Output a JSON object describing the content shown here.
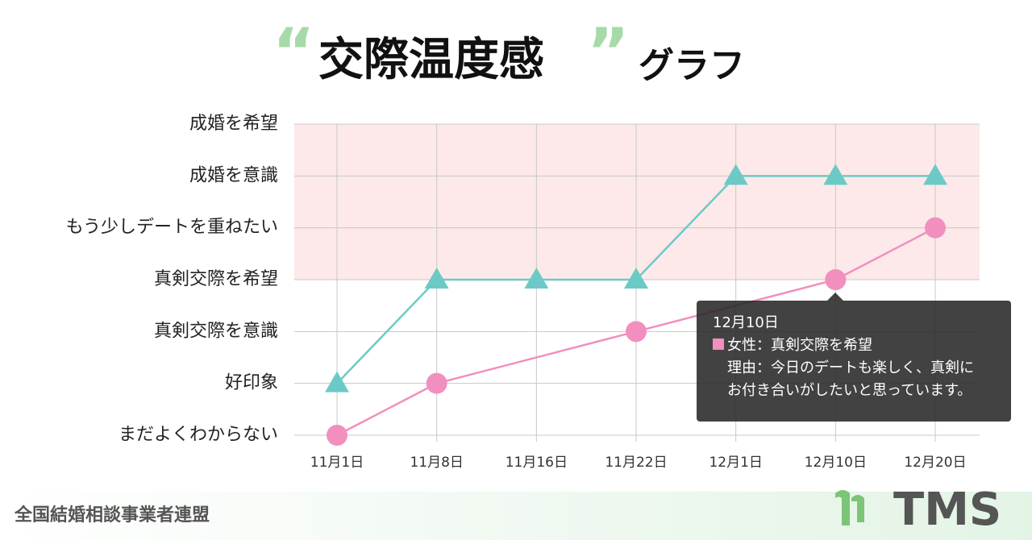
{
  "chart_data": {
    "type": "line",
    "title_quotes": [
      "“",
      "”"
    ],
    "title": "交際温度感",
    "title_suffix": "グラフ",
    "categories": [
      "11月1日",
      "11月8日",
      "11月16日",
      "11月22日",
      "12月1日",
      "12月10日",
      "12月20日"
    ],
    "series": [
      {
        "color": "#6ccac6",
        "marker": "triangle",
        "values": [
          1,
          3,
          3,
          3,
          5,
          5,
          5
        ]
      },
      {
        "color": "#f28fbf",
        "marker": "circle",
        "values": [
          0,
          1,
          null,
          2,
          null,
          3,
          4
        ]
      }
    ],
    "connect_gaps": true,
    "ylim": [
      0,
      6
    ],
    "yticks": [
      {
        "value": 0,
        "label": "まだよくわからない"
      },
      {
        "value": 1,
        "label": "好印象"
      },
      {
        "value": 2,
        "label": "真剣交際を意識"
      },
      {
        "value": 3,
        "label": "真剣交際を希望"
      },
      {
        "value": 4,
        "label": "もう少しデートを重ねたい"
      },
      {
        "value": 5,
        "label": "成婚を意識"
      },
      {
        "value": 6,
        "label": "成婚を希望"
      }
    ],
    "shaded_range": {
      "from": 3,
      "to": 6,
      "color": "#fde9e9"
    },
    "grid": true,
    "tooltip": {
      "date": "12月10日",
      "lines": [
        "女性：真剣交際を希望",
        "理由：今日のデートも楽しく、真剣に",
        "お付き合いがしたいと思っています。"
      ]
    }
  },
  "footer": "全国結婚相談事業者連盟",
  "logo": "TMS"
}
